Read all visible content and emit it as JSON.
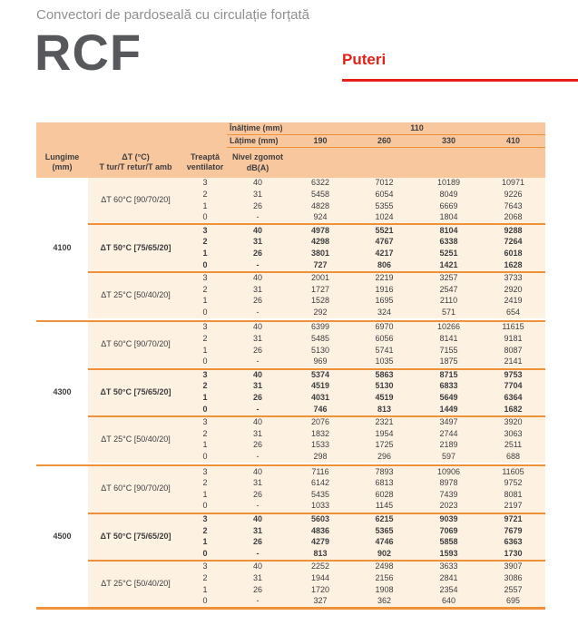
{
  "page": {
    "subtitle": "Convectori de pardoseală cu circulație forțată",
    "product_code": "RCF",
    "tab_label": "Puteri"
  },
  "colors": {
    "accent_red": "#e32119",
    "header_peach": "#f8c79e",
    "body_cream": "#fdf1e2",
    "line_orange": "#ee9138",
    "text_dark": "#3d3e40",
    "subtitle_gray": "#8f9093",
    "logo_gray": "#57585b"
  },
  "table": {
    "header": {
      "height_label": "Înălțime (mm)",
      "height_value": "110",
      "width_label": "Lățime (mm)",
      "width_values": [
        "190",
        "260",
        "330",
        "410"
      ],
      "col_headers": [
        {
          "line1": "Lungime",
          "line2": "(mm)"
        },
        {
          "line1": "ΔT (°C)",
          "line2": "T tur/T retur/T amb"
        },
        {
          "line1": "Treaptă",
          "line2": "ventilator"
        },
        {
          "line1": "Nivel zgomot",
          "line2": "dB(A)"
        }
      ]
    },
    "groups": [
      {
        "length": "4100",
        "sections": [
          {
            "dt_label": "ΔT 60°C [90/70/20]",
            "bold": false,
            "rows": [
              {
                "step": "3",
                "noise": "40",
                "powers": [
                  "6322",
                  "7012",
                  "10189",
                  "10971"
                ]
              },
              {
                "step": "2",
                "noise": "31",
                "powers": [
                  "5458",
                  "6054",
                  "8049",
                  "9226"
                ]
              },
              {
                "step": "1",
                "noise": "26",
                "powers": [
                  "4828",
                  "5355",
                  "6669",
                  "7643"
                ]
              },
              {
                "step": "0",
                "noise": "-",
                "powers": [
                  "924",
                  "1024",
                  "1804",
                  "2068"
                ]
              }
            ]
          },
          {
            "dt_label": "ΔT 50°C [75/65/20]",
            "bold": true,
            "rows": [
              {
                "step": "3",
                "noise": "40",
                "powers": [
                  "4978",
                  "5521",
                  "8104",
                  "9288"
                ]
              },
              {
                "step": "2",
                "noise": "31",
                "powers": [
                  "4298",
                  "4767",
                  "6338",
                  "7264"
                ]
              },
              {
                "step": "1",
                "noise": "26",
                "powers": [
                  "3801",
                  "4217",
                  "5251",
                  "6018"
                ]
              },
              {
                "step": "0",
                "noise": "-",
                "powers": [
                  "727",
                  "806",
                  "1421",
                  "1628"
                ]
              }
            ]
          },
          {
            "dt_label": "ΔT 25°C [50/40/20]",
            "bold": false,
            "rows": [
              {
                "step": "3",
                "noise": "40",
                "powers": [
                  "2001",
                  "2219",
                  "3257",
                  "3733"
                ]
              },
              {
                "step": "2",
                "noise": "31",
                "powers": [
                  "1727",
                  "1916",
                  "2547",
                  "2920"
                ]
              },
              {
                "step": "1",
                "noise": "26",
                "powers": [
                  "1528",
                  "1695",
                  "2110",
                  "2419"
                ]
              },
              {
                "step": "0",
                "noise": "-",
                "powers": [
                  "292",
                  "324",
                  "571",
                  "654"
                ]
              }
            ]
          }
        ]
      },
      {
        "length": "4300",
        "sections": [
          {
            "dt_label": "ΔT 60°C [90/70/20]",
            "bold": false,
            "rows": [
              {
                "step": "3",
                "noise": "40",
                "powers": [
                  "6399",
                  "6970",
                  "10266",
                  "11615"
                ]
              },
              {
                "step": "2",
                "noise": "31",
                "powers": [
                  "5485",
                  "6056",
                  "8141",
                  "9181"
                ]
              },
              {
                "step": "1",
                "noise": "26",
                "powers": [
                  "5130",
                  "5741",
                  "7155",
                  "8087"
                ]
              },
              {
                "step": "0",
                "noise": "-",
                "powers": [
                  "969",
                  "1035",
                  "1875",
                  "2141"
                ]
              }
            ]
          },
          {
            "dt_label": "ΔT 50°C [75/65/20]",
            "bold": true,
            "rows": [
              {
                "step": "3",
                "noise": "40",
                "powers": [
                  "5374",
                  "5863",
                  "8715",
                  "9753"
                ]
              },
              {
                "step": "2",
                "noise": "31",
                "powers": [
                  "4519",
                  "5130",
                  "6833",
                  "7704"
                ]
              },
              {
                "step": "1",
                "noise": "26",
                "powers": [
                  "4031",
                  "4519",
                  "5649",
                  "6364"
                ]
              },
              {
                "step": "0",
                "noise": "-",
                "powers": [
                  "746",
                  "813",
                  "1449",
                  "1682"
                ]
              }
            ]
          },
          {
            "dt_label": "ΔT 25°C [50/40/20]",
            "bold": false,
            "rows": [
              {
                "step": "3",
                "noise": "40",
                "powers": [
                  "2076",
                  "2321",
                  "3497",
                  "3920"
                ]
              },
              {
                "step": "2",
                "noise": "31",
                "powers": [
                  "1832",
                  "1954",
                  "2744",
                  "3063"
                ]
              },
              {
                "step": "1",
                "noise": "26",
                "powers": [
                  "1533",
                  "1725",
                  "2189",
                  "2511"
                ]
              },
              {
                "step": "0",
                "noise": "-",
                "powers": [
                  "298",
                  "296",
                  "597",
                  "688"
                ]
              }
            ]
          }
        ]
      },
      {
        "length": "4500",
        "sections": [
          {
            "dt_label": "ΔT 60°C [90/70/20]",
            "bold": false,
            "rows": [
              {
                "step": "3",
                "noise": "40",
                "powers": [
                  "7116",
                  "7893",
                  "10906",
                  "11605"
                ]
              },
              {
                "step": "2",
                "noise": "31",
                "powers": [
                  "6142",
                  "6813",
                  "8978",
                  "9752"
                ]
              },
              {
                "step": "1",
                "noise": "26",
                "powers": [
                  "5435",
                  "6028",
                  "7439",
                  "8081"
                ]
              },
              {
                "step": "0",
                "noise": "-",
                "powers": [
                  "1033",
                  "1145",
                  "2023",
                  "2197"
                ]
              }
            ]
          },
          {
            "dt_label": "ΔT 50°C [75/65/20]",
            "bold": true,
            "rows": [
              {
                "step": "3",
                "noise": "40",
                "powers": [
                  "5603",
                  "6215",
                  "9039",
                  "9721"
                ]
              },
              {
                "step": "2",
                "noise": "31",
                "powers": [
                  "4836",
                  "5365",
                  "7069",
                  "7679"
                ]
              },
              {
                "step": "1",
                "noise": "26",
                "powers": [
                  "4279",
                  "4746",
                  "5858",
                  "6363"
                ]
              },
              {
                "step": "0",
                "noise": "-",
                "powers": [
                  "813",
                  "902",
                  "1593",
                  "1730"
                ]
              }
            ]
          },
          {
            "dt_label": "ΔT 25°C [50/40/20]",
            "bold": false,
            "rows": [
              {
                "step": "3",
                "noise": "40",
                "powers": [
                  "2252",
                  "2498",
                  "3633",
                  "3907"
                ]
              },
              {
                "step": "2",
                "noise": "31",
                "powers": [
                  "1944",
                  "2156",
                  "2841",
                  "3086"
                ]
              },
              {
                "step": "1",
                "noise": "26",
                "powers": [
                  "1720",
                  "1908",
                  "2354",
                  "2557"
                ]
              },
              {
                "step": "0",
                "noise": "-",
                "powers": [
                  "327",
                  "362",
                  "640",
                  "695"
                ]
              }
            ]
          }
        ]
      }
    ]
  }
}
